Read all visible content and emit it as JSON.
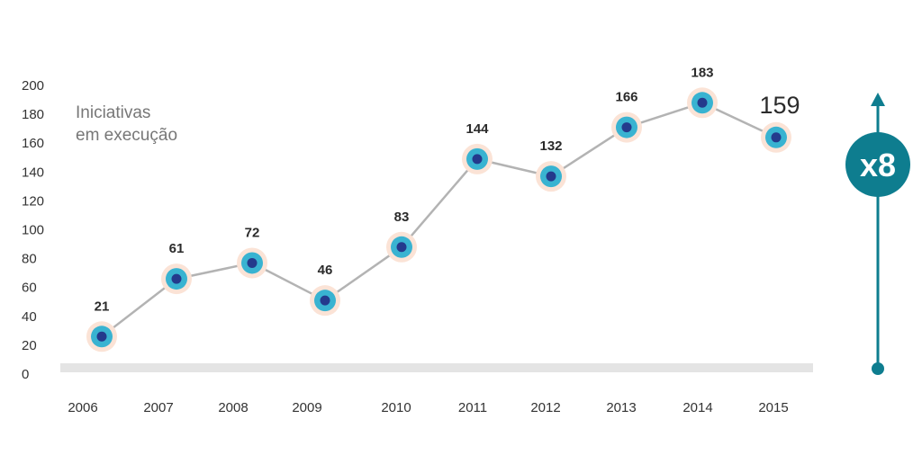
{
  "chart_data": {
    "type": "line",
    "x": [
      "2006",
      "2007",
      "2008",
      "2009",
      "2010",
      "2011",
      "2012",
      "2013",
      "2014",
      "2015"
    ],
    "values": [
      21,
      61,
      72,
      46,
      83,
      144,
      132,
      166,
      183,
      159
    ],
    "series_label_lines": [
      "Iniciativas",
      "em execução"
    ],
    "ylim": [
      0,
      200
    ],
    "yticks": [
      0,
      20,
      40,
      60,
      80,
      100,
      120,
      140,
      160,
      180,
      200
    ],
    "grid": false,
    "highlight_last": true,
    "multiplier_label": "x8"
  },
  "colors": {
    "line": "#b3b3b3",
    "marker_halo": "#fbe3d6",
    "marker_ring": "#39b3d1",
    "marker_core": "#243a8c",
    "baseline": "#e4e4e4",
    "accent": "#0e7d8f"
  }
}
